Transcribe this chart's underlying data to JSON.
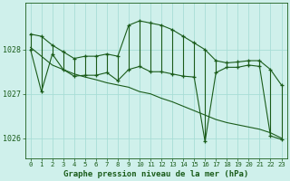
{
  "title": "Graphe pression niveau de la mer (hPa)",
  "background_color": "#cff0eb",
  "grid_color": "#a8ddd6",
  "line_color": "#1a5c1a",
  "x_labels": [
    "0",
    "1",
    "2",
    "3",
    "4",
    "5",
    "6",
    "7",
    "8",
    "9",
    "10",
    "11",
    "12",
    "13",
    "14",
    "15",
    "16",
    "17",
    "18",
    "19",
    "20",
    "21",
    "22",
    "23"
  ],
  "ylim": [
    1025.55,
    1029.05
  ],
  "yticks": [
    1026,
    1027,
    1028
  ],
  "hours": [
    0,
    1,
    2,
    3,
    4,
    5,
    6,
    7,
    8,
    9,
    10,
    11,
    12,
    13,
    14,
    15,
    16,
    17,
    18,
    19,
    20,
    21,
    22,
    23
  ],
  "upper": [
    1028.35,
    1028.3,
    1028.1,
    1027.95,
    1027.8,
    1027.85,
    1027.85,
    1027.9,
    1027.85,
    1028.55,
    1028.65,
    1028.6,
    1028.55,
    1028.45,
    1028.3,
    1028.15,
    1028.0,
    1027.75,
    1027.7,
    1027.72,
    1027.75,
    1027.75,
    1027.55,
    1027.2
  ],
  "lower": [
    1028.0,
    1027.05,
    1027.9,
    1027.55,
    1027.4,
    1027.42,
    1027.42,
    1027.48,
    1027.3,
    1027.55,
    1027.62,
    1027.5,
    1027.5,
    1027.45,
    1027.4,
    1027.38,
    1025.92,
    1027.48,
    1027.6,
    1027.6,
    1027.65,
    1027.62,
    1026.05,
    1025.97
  ],
  "smooth_lower": [
    1028.05,
    1027.85,
    1027.65,
    1027.55,
    1027.45,
    1027.38,
    1027.32,
    1027.25,
    1027.2,
    1027.15,
    1027.05,
    1027.0,
    1026.9,
    1026.82,
    1026.72,
    1026.62,
    1026.52,
    1026.42,
    1026.35,
    1026.3,
    1026.25,
    1026.2,
    1026.12,
    1026.0
  ]
}
